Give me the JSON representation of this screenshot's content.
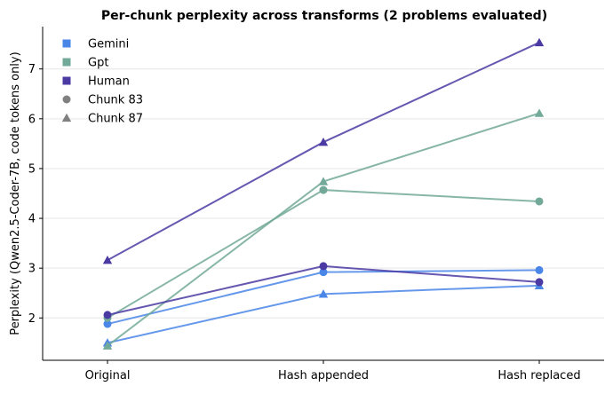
{
  "chart_data": {
    "type": "line",
    "title": "Per-chunk perplexity across transforms (2 problems evaluated)",
    "xlabel": "",
    "ylabel": "Perplexity (Qwen2.5-Coder-7B, code tokens only)",
    "categories": [
      "Original",
      "Hash appended",
      "Hash replaced"
    ],
    "ylim": [
      1.15,
      7.85
    ],
    "yticks": [
      2,
      3,
      4,
      5,
      6,
      7
    ],
    "grid": "horizontal",
    "legend_position": "top-left",
    "legend": {
      "models": [
        {
          "name": "Gemini",
          "color": "#4a86e8"
        },
        {
          "name": "Gpt",
          "color": "#72a998"
        },
        {
          "name": "Human",
          "color": "#4b3aa3"
        }
      ],
      "chunks": [
        {
          "name": "Chunk 83",
          "marker": "circle"
        },
        {
          "name": "Chunk 87",
          "marker": "triangle"
        }
      ],
      "marker_color": "#808080"
    },
    "series": [
      {
        "model": "Gemini",
        "chunk": "Chunk 83",
        "marker": "circle",
        "color": "#4a86e8",
        "values": [
          1.88,
          2.92,
          2.96
        ]
      },
      {
        "model": "Gemini",
        "chunk": "Chunk 87",
        "marker": "triangle",
        "color": "#4a86e8",
        "values": [
          1.5,
          2.48,
          2.65
        ]
      },
      {
        "model": "Gpt",
        "chunk": "Chunk 83",
        "marker": "circle",
        "color": "#72a998",
        "values": [
          2.0,
          4.57,
          4.34
        ]
      },
      {
        "model": "Gpt",
        "chunk": "Chunk 87",
        "marker": "triangle",
        "color": "#72a998",
        "values": [
          1.44,
          4.74,
          6.11
        ]
      },
      {
        "model": "Human",
        "chunk": "Chunk 83",
        "marker": "circle",
        "color": "#4b3aa3",
        "values": [
          2.06,
          3.04,
          2.72
        ]
      },
      {
        "model": "Human",
        "chunk": "Chunk 87",
        "marker": "triangle",
        "color": "#4b3aa3",
        "values": [
          3.16,
          5.53,
          7.53
        ]
      }
    ]
  }
}
